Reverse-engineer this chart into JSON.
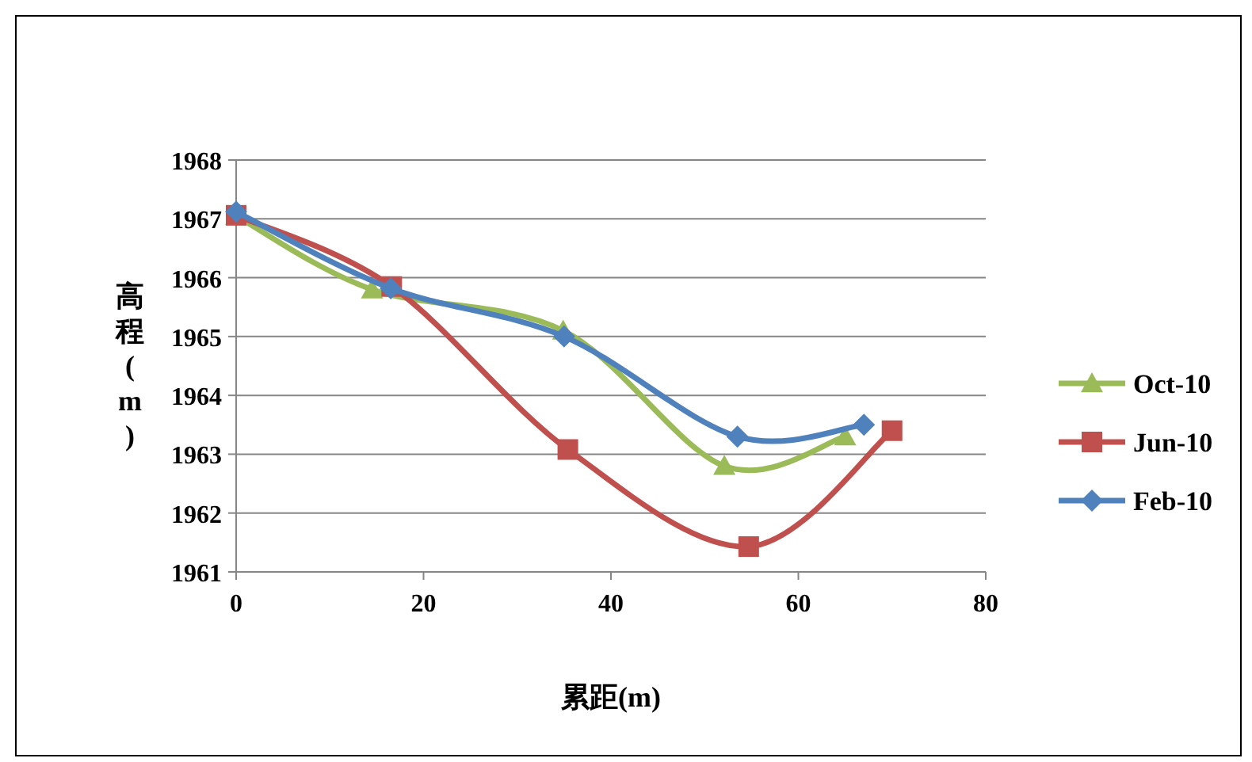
{
  "chart_data": {
    "type": "line",
    "xlabel": "累距(m)",
    "ylabel": "高程(m)",
    "xlim": [
      0,
      80
    ],
    "xticks": [
      0,
      20,
      40,
      60,
      80
    ],
    "ylim": [
      1961,
      1968
    ],
    "yticks": [
      1961,
      1962,
      1963,
      1964,
      1965,
      1966,
      1967,
      1968
    ],
    "grid": "y",
    "legend": "right",
    "line_style": "solid",
    "series": [
      {
        "name": "Oct-10",
        "color": "#9bbb59",
        "marker": "triangle",
        "x": [
          0,
          14.5,
          34.9,
          52.1,
          65
        ],
        "values": [
          1967.05,
          1965.8,
          1965.1,
          1962.8,
          1963.3
        ]
      },
      {
        "name": "Jun-10",
        "color": "#c0504d",
        "marker": "square",
        "x": [
          0,
          16.6,
          35.4,
          54.7,
          70
        ],
        "values": [
          1967.06,
          1965.85,
          1963.08,
          1961.43,
          1963.4
        ]
      },
      {
        "name": "Feb-10",
        "color": "#4f81bd",
        "marker": "diamond",
        "x": [
          0,
          16.5,
          35,
          53.5,
          67
        ],
        "values": [
          1967.12,
          1965.82,
          1965.0,
          1963.3,
          1963.5
        ]
      }
    ]
  }
}
